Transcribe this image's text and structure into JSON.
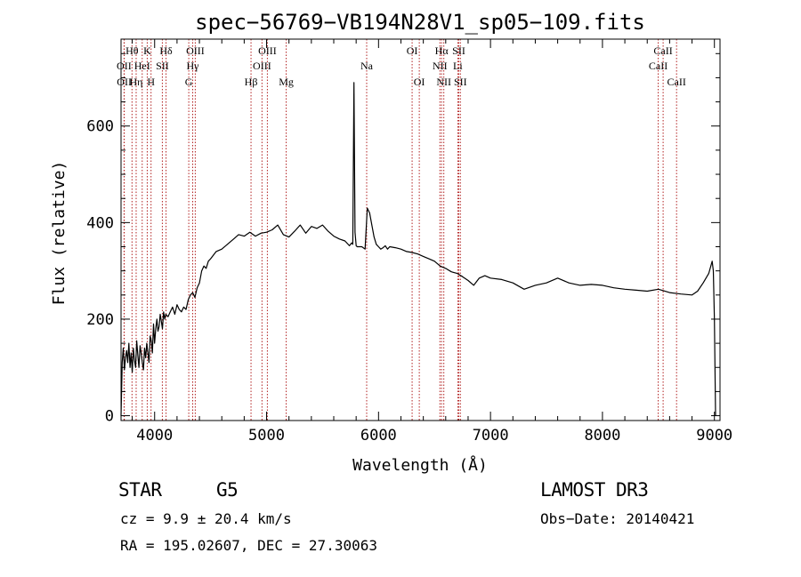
{
  "chart_data": {
    "type": "line",
    "title": "spec−56769−VB194N28V1_sp05−109.fits",
    "xlabel": "Wavelength (Å)",
    "ylabel": "Flux (relative)",
    "xlim": [
      3700,
      9050
    ],
    "ylim": [
      -10,
      780
    ],
    "xticks": [
      4000,
      5000,
      6000,
      7000,
      8000,
      9000
    ],
    "xtick_labels": [
      "4000",
      "5000",
      "6000",
      "7000",
      "8000",
      "9000"
    ],
    "yticks": [
      0,
      200,
      400,
      600
    ],
    "ytick_labels": [
      "0",
      "200",
      "400",
      "600"
    ],
    "grid": false,
    "series": [
      {
        "name": "flux",
        "x": [
          3700,
          3710,
          3720,
          3730,
          3740,
          3750,
          3760,
          3770,
          3780,
          3790,
          3800,
          3810,
          3820,
          3830,
          3840,
          3850,
          3860,
          3870,
          3880,
          3890,
          3900,
          3910,
          3920,
          3930,
          3940,
          3950,
          3960,
          3970,
          3980,
          3990,
          4000,
          4010,
          4020,
          4030,
          4040,
          4050,
          4060,
          4070,
          4080,
          4090,
          4100,
          4120,
          4140,
          4160,
          4180,
          4200,
          4220,
          4240,
          4260,
          4280,
          4300,
          4320,
          4340,
          4360,
          4380,
          4400,
          4420,
          4440,
          4460,
          4480,
          4500,
          4550,
          4600,
          4650,
          4700,
          4750,
          4800,
          4850,
          4900,
          4950,
          5000,
          5050,
          5100,
          5150,
          5200,
          5250,
          5300,
          5350,
          5400,
          5450,
          5500,
          5550,
          5600,
          5650,
          5700,
          5740,
          5760,
          5770,
          5780,
          5790,
          5800,
          5810,
          5850,
          5880,
          5900,
          5920,
          5940,
          5960,
          5980,
          6000,
          6020,
          6040,
          6060,
          6080,
          6100,
          6150,
          6200,
          6250,
          6300,
          6350,
          6400,
          6450,
          6500,
          6550,
          6600,
          6650,
          6700,
          6750,
          6800,
          6850,
          6900,
          6950,
          7000,
          7100,
          7200,
          7300,
          7400,
          7500,
          7600,
          7700,
          7800,
          7900,
          8000,
          8100,
          8200,
          8300,
          8400,
          8500,
          8600,
          8700,
          8800,
          8850,
          8900,
          8950,
          8980,
          8990,
          9000,
          9010
        ],
        "values": [
          0,
          110,
          140,
          95,
          120,
          135,
          110,
          150,
          100,
          130,
          90,
          140,
          115,
          100,
          155,
          125,
          100,
          145,
          130,
          110,
          95,
          140,
          120,
          150,
          130,
          110,
          165,
          155,
          130,
          190,
          150,
          180,
          200,
          175,
          185,
          210,
          195,
          180,
          215,
          200,
          210,
          205,
          215,
          225,
          210,
          230,
          220,
          215,
          225,
          220,
          240,
          250,
          255,
          245,
          265,
          275,
          300,
          310,
          305,
          320,
          325,
          340,
          345,
          355,
          365,
          375,
          372,
          380,
          372,
          378,
          380,
          385,
          395,
          375,
          370,
          382,
          395,
          378,
          392,
          388,
          395,
          382,
          372,
          366,
          362,
          352,
          358,
          355,
          690,
          380,
          352,
          350,
          350,
          345,
          430,
          420,
          395,
          370,
          355,
          350,
          345,
          348,
          352,
          345,
          350,
          348,
          345,
          340,
          338,
          335,
          330,
          325,
          320,
          310,
          305,
          298,
          295,
          288,
          280,
          270,
          285,
          290,
          285,
          282,
          275,
          262,
          270,
          275,
          285,
          275,
          270,
          272,
          270,
          265,
          262,
          260,
          258,
          262,
          255,
          252,
          250,
          258,
          275,
          295,
          320,
          300,
          200,
          0
        ]
      }
    ],
    "lines": [
      {
        "label": "Hθ",
        "wavelength": 3798,
        "row": 0
      },
      {
        "label": "OII",
        "wavelength": 3727,
        "row": 1
      },
      {
        "label": "OII",
        "wavelength": 3729,
        "row": 2
      },
      {
        "label": "Hη",
        "wavelength": 3835,
        "row": 2
      },
      {
        "label": "HeI",
        "wavelength": 3889,
        "row": 1
      },
      {
        "label": "K",
        "wavelength": 3934,
        "row": 0
      },
      {
        "label": "SII",
        "wavelength": 4069,
        "row": 1
      },
      {
        "label": "H",
        "wavelength": 3968,
        "row": 2
      },
      {
        "label": "Hδ",
        "wavelength": 4102,
        "row": 0
      },
      {
        "label": "OIII",
        "wavelength": 4363,
        "row": 0
      },
      {
        "label": "Hγ",
        "wavelength": 4340,
        "row": 1
      },
      {
        "label": "G",
        "wavelength": 4305,
        "row": 2
      },
      {
        "label": "Hβ",
        "wavelength": 4861,
        "row": 2
      },
      {
        "label": "OIII",
        "wavelength": 5007,
        "row": 0
      },
      {
        "label": "OIII",
        "wavelength": 4959,
        "row": 1
      },
      {
        "label": "Mg",
        "wavelength": 5175,
        "row": 2
      },
      {
        "label": "Na",
        "wavelength": 5894,
        "row": 1
      },
      {
        "label": "OI",
        "wavelength": 6300,
        "row": 0
      },
      {
        "label": "OI",
        "wavelength": 6364,
        "row": 2
      },
      {
        "label": "Hα",
        "wavelength": 6563,
        "row": 0
      },
      {
        "label": "SII",
        "wavelength": 6717,
        "row": 0
      },
      {
        "label": "NII",
        "wavelength": 6548,
        "row": 1
      },
      {
        "label": "Li",
        "wavelength": 6708,
        "row": 1
      },
      {
        "label": "NII",
        "wavelength": 6583,
        "row": 2
      },
      {
        "label": "SII",
        "wavelength": 6731,
        "row": 2
      },
      {
        "label": "CaII",
        "wavelength": 8542,
        "row": 0
      },
      {
        "label": "CaII",
        "wavelength": 8498,
        "row": 1
      },
      {
        "label": "CaII",
        "wavelength": 8662,
        "row": 2
      }
    ]
  },
  "info": {
    "class": "STAR",
    "subclass": "G5",
    "survey": "LAMOST DR3",
    "cz": "cz = 9.9 ± 20.4 km/s",
    "obs_date": "Obs−Date: 20140421",
    "coords": "RA = 195.02607, DEC =  27.30063"
  }
}
